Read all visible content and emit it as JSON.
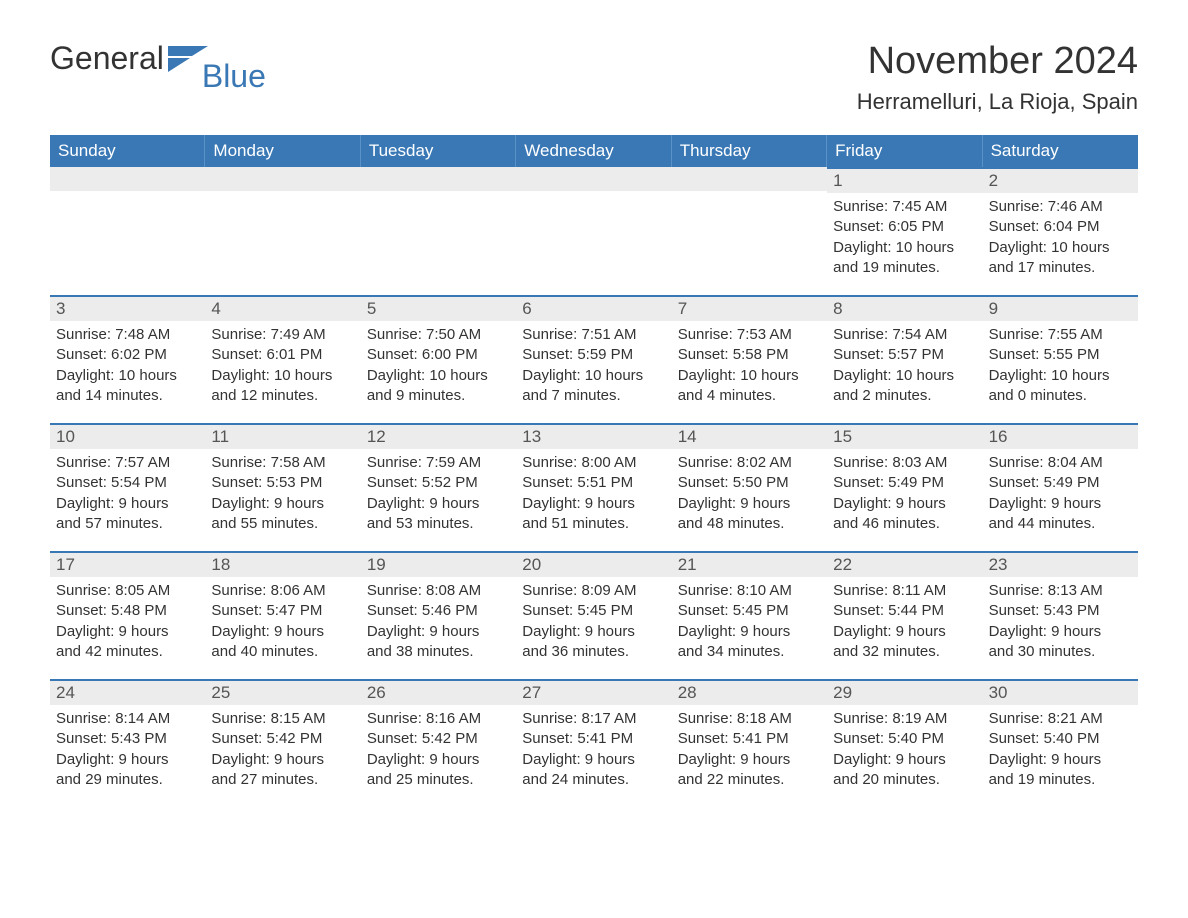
{
  "logo": {
    "word1": "General",
    "word2": "Blue"
  },
  "title": "November 2024",
  "location": "Herramelluri, La Rioja, Spain",
  "colors": {
    "header_blue": "#3a78b5",
    "daynum_bg": "#ececec",
    "text": "#333333",
    "white": "#ffffff"
  },
  "weekdays": [
    "Sunday",
    "Monday",
    "Tuesday",
    "Wednesday",
    "Thursday",
    "Friday",
    "Saturday"
  ],
  "weeks": [
    [
      {
        "blank": true
      },
      {
        "blank": true
      },
      {
        "blank": true
      },
      {
        "blank": true
      },
      {
        "blank": true
      },
      {
        "day": "1",
        "sunrise": "Sunrise: 7:45 AM",
        "sunset": "Sunset: 6:05 PM",
        "daylight1": "Daylight: 10 hours",
        "daylight2": "and 19 minutes."
      },
      {
        "day": "2",
        "sunrise": "Sunrise: 7:46 AM",
        "sunset": "Sunset: 6:04 PM",
        "daylight1": "Daylight: 10 hours",
        "daylight2": "and 17 minutes."
      }
    ],
    [
      {
        "day": "3",
        "sunrise": "Sunrise: 7:48 AM",
        "sunset": "Sunset: 6:02 PM",
        "daylight1": "Daylight: 10 hours",
        "daylight2": "and 14 minutes."
      },
      {
        "day": "4",
        "sunrise": "Sunrise: 7:49 AM",
        "sunset": "Sunset: 6:01 PM",
        "daylight1": "Daylight: 10 hours",
        "daylight2": "and 12 minutes."
      },
      {
        "day": "5",
        "sunrise": "Sunrise: 7:50 AM",
        "sunset": "Sunset: 6:00 PM",
        "daylight1": "Daylight: 10 hours",
        "daylight2": "and 9 minutes."
      },
      {
        "day": "6",
        "sunrise": "Sunrise: 7:51 AM",
        "sunset": "Sunset: 5:59 PM",
        "daylight1": "Daylight: 10 hours",
        "daylight2": "and 7 minutes."
      },
      {
        "day": "7",
        "sunrise": "Sunrise: 7:53 AM",
        "sunset": "Sunset: 5:58 PM",
        "daylight1": "Daylight: 10 hours",
        "daylight2": "and 4 minutes."
      },
      {
        "day": "8",
        "sunrise": "Sunrise: 7:54 AM",
        "sunset": "Sunset: 5:57 PM",
        "daylight1": "Daylight: 10 hours",
        "daylight2": "and 2 minutes."
      },
      {
        "day": "9",
        "sunrise": "Sunrise: 7:55 AM",
        "sunset": "Sunset: 5:55 PM",
        "daylight1": "Daylight: 10 hours",
        "daylight2": "and 0 minutes."
      }
    ],
    [
      {
        "day": "10",
        "sunrise": "Sunrise: 7:57 AM",
        "sunset": "Sunset: 5:54 PM",
        "daylight1": "Daylight: 9 hours",
        "daylight2": "and 57 minutes."
      },
      {
        "day": "11",
        "sunrise": "Sunrise: 7:58 AM",
        "sunset": "Sunset: 5:53 PM",
        "daylight1": "Daylight: 9 hours",
        "daylight2": "and 55 minutes."
      },
      {
        "day": "12",
        "sunrise": "Sunrise: 7:59 AM",
        "sunset": "Sunset: 5:52 PM",
        "daylight1": "Daylight: 9 hours",
        "daylight2": "and 53 minutes."
      },
      {
        "day": "13",
        "sunrise": "Sunrise: 8:00 AM",
        "sunset": "Sunset: 5:51 PM",
        "daylight1": "Daylight: 9 hours",
        "daylight2": "and 51 minutes."
      },
      {
        "day": "14",
        "sunrise": "Sunrise: 8:02 AM",
        "sunset": "Sunset: 5:50 PM",
        "daylight1": "Daylight: 9 hours",
        "daylight2": "and 48 minutes."
      },
      {
        "day": "15",
        "sunrise": "Sunrise: 8:03 AM",
        "sunset": "Sunset: 5:49 PM",
        "daylight1": "Daylight: 9 hours",
        "daylight2": "and 46 minutes."
      },
      {
        "day": "16",
        "sunrise": "Sunrise: 8:04 AM",
        "sunset": "Sunset: 5:49 PM",
        "daylight1": "Daylight: 9 hours",
        "daylight2": "and 44 minutes."
      }
    ],
    [
      {
        "day": "17",
        "sunrise": "Sunrise: 8:05 AM",
        "sunset": "Sunset: 5:48 PM",
        "daylight1": "Daylight: 9 hours",
        "daylight2": "and 42 minutes."
      },
      {
        "day": "18",
        "sunrise": "Sunrise: 8:06 AM",
        "sunset": "Sunset: 5:47 PM",
        "daylight1": "Daylight: 9 hours",
        "daylight2": "and 40 minutes."
      },
      {
        "day": "19",
        "sunrise": "Sunrise: 8:08 AM",
        "sunset": "Sunset: 5:46 PM",
        "daylight1": "Daylight: 9 hours",
        "daylight2": "and 38 minutes."
      },
      {
        "day": "20",
        "sunrise": "Sunrise: 8:09 AM",
        "sunset": "Sunset: 5:45 PM",
        "daylight1": "Daylight: 9 hours",
        "daylight2": "and 36 minutes."
      },
      {
        "day": "21",
        "sunrise": "Sunrise: 8:10 AM",
        "sunset": "Sunset: 5:45 PM",
        "daylight1": "Daylight: 9 hours",
        "daylight2": "and 34 minutes."
      },
      {
        "day": "22",
        "sunrise": "Sunrise: 8:11 AM",
        "sunset": "Sunset: 5:44 PM",
        "daylight1": "Daylight: 9 hours",
        "daylight2": "and 32 minutes."
      },
      {
        "day": "23",
        "sunrise": "Sunrise: 8:13 AM",
        "sunset": "Sunset: 5:43 PM",
        "daylight1": "Daylight: 9 hours",
        "daylight2": "and 30 minutes."
      }
    ],
    [
      {
        "day": "24",
        "sunrise": "Sunrise: 8:14 AM",
        "sunset": "Sunset: 5:43 PM",
        "daylight1": "Daylight: 9 hours",
        "daylight2": "and 29 minutes."
      },
      {
        "day": "25",
        "sunrise": "Sunrise: 8:15 AM",
        "sunset": "Sunset: 5:42 PM",
        "daylight1": "Daylight: 9 hours",
        "daylight2": "and 27 minutes."
      },
      {
        "day": "26",
        "sunrise": "Sunrise: 8:16 AM",
        "sunset": "Sunset: 5:42 PM",
        "daylight1": "Daylight: 9 hours",
        "daylight2": "and 25 minutes."
      },
      {
        "day": "27",
        "sunrise": "Sunrise: 8:17 AM",
        "sunset": "Sunset: 5:41 PM",
        "daylight1": "Daylight: 9 hours",
        "daylight2": "and 24 minutes."
      },
      {
        "day": "28",
        "sunrise": "Sunrise: 8:18 AM",
        "sunset": "Sunset: 5:41 PM",
        "daylight1": "Daylight: 9 hours",
        "daylight2": "and 22 minutes."
      },
      {
        "day": "29",
        "sunrise": "Sunrise: 8:19 AM",
        "sunset": "Sunset: 5:40 PM",
        "daylight1": "Daylight: 9 hours",
        "daylight2": "and 20 minutes."
      },
      {
        "day": "30",
        "sunrise": "Sunrise: 8:21 AM",
        "sunset": "Sunset: 5:40 PM",
        "daylight1": "Daylight: 9 hours",
        "daylight2": "and 19 minutes."
      }
    ]
  ]
}
